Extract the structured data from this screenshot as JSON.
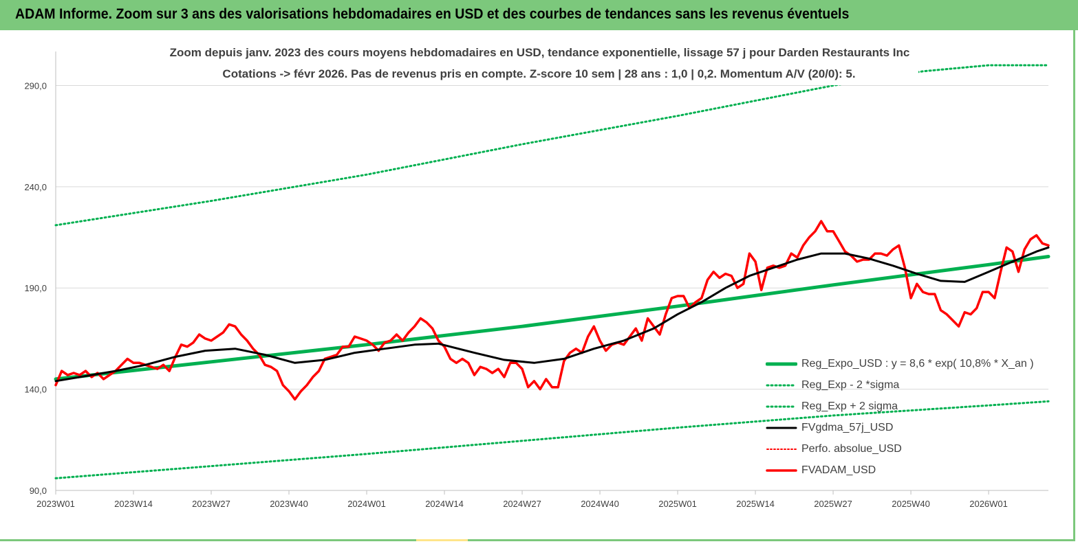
{
  "banner": {
    "title": "ADAM Informe. Zoom sur 3 ans des valorisations hebdomadaires en USD et des courbes de tendances sans les revenus éventuels"
  },
  "colors": {
    "banner": "#7cc87c",
    "regression": "#00b050",
    "sigma_band": "#00b050",
    "smoothed": "#000000",
    "perfo": "#ff0000",
    "price": "#ff0000"
  },
  "chart_data": {
    "type": "line",
    "title": "Zoom depuis janv. 2023 des cours moyens hebdomadaires en USD, tendance exponentielle, lissage 57 j pour Darden Restaurants Inc",
    "subtitle": "Cotations -> févr 2026. Pas de revenus pris en compte. Z-score 10 sem | 28 ans : 1,0 | 0,2. Momentum A/V (20/0): 5.",
    "xlabel": "",
    "ylabel": "",
    "ylim": [
      90,
      300
    ],
    "y_ticks": [
      "90,0",
      "140,0",
      "190,0",
      "240,0",
      "290,0"
    ],
    "y_tick_values": [
      90,
      140,
      190,
      240,
      290
    ],
    "x_ticks": [
      "2023W01",
      "2023W14",
      "2023W27",
      "2023W40",
      "2024W01",
      "2024W14",
      "2024W27",
      "2024W40",
      "2025W01",
      "2025W14",
      "2025W27",
      "2025W40",
      "2026W01"
    ],
    "x_tick_weeks": [
      0,
      13,
      26,
      39,
      52,
      65,
      78,
      91,
      104,
      117,
      130,
      143,
      156
    ],
    "x_max_week": 166,
    "grid": "horizontal",
    "legend_position": "bottom-right",
    "series": [
      {
        "name": "Reg_Expo_USD : y = 8,6 * exp( 10,8% * X_an )",
        "style": "solid-thick",
        "points": [
          [
            0,
            145
          ],
          [
            26,
            153.5
          ],
          [
            52,
            162
          ],
          [
            78,
            171
          ],
          [
            104,
            181
          ],
          [
            130,
            191.5
          ],
          [
            156,
            201.5
          ],
          [
            166,
            205.5
          ]
        ]
      },
      {
        "name": "Reg_Exp - 2 *sigma",
        "style": "dotted",
        "points": [
          [
            0,
            96
          ],
          [
            26,
            102
          ],
          [
            52,
            108
          ],
          [
            78,
            114.5
          ],
          [
            104,
            121
          ],
          [
            130,
            127
          ],
          [
            156,
            132
          ],
          [
            166,
            134
          ]
        ]
      },
      {
        "name": "Reg_Exp + 2 sigma",
        "style": "dotted",
        "points": [
          [
            0,
            221
          ],
          [
            26,
            233
          ],
          [
            52,
            246
          ],
          [
            78,
            261
          ],
          [
            104,
            275
          ],
          [
            130,
            290
          ],
          [
            145,
            297
          ],
          [
            156,
            300
          ],
          [
            166,
            300
          ]
        ]
      },
      {
        "name": "FVgdma_57j_USD",
        "style": "solid",
        "points": [
          [
            0,
            144
          ],
          [
            5,
            146.5
          ],
          [
            10,
            149
          ],
          [
            15,
            152
          ],
          [
            20,
            156
          ],
          [
            25,
            159
          ],
          [
            30,
            160
          ],
          [
            35,
            157
          ],
          [
            40,
            153
          ],
          [
            45,
            154.5
          ],
          [
            50,
            158
          ],
          [
            55,
            160
          ],
          [
            60,
            162
          ],
          [
            64,
            162.5
          ],
          [
            70,
            158
          ],
          [
            75,
            154.5
          ],
          [
            80,
            153
          ],
          [
            85,
            155
          ],
          [
            90,
            160
          ],
          [
            95,
            164
          ],
          [
            100,
            170
          ],
          [
            104,
            177
          ],
          [
            108,
            183
          ],
          [
            112,
            190
          ],
          [
            116,
            196
          ],
          [
            120,
            200
          ],
          [
            124,
            204
          ],
          [
            128,
            207
          ],
          [
            132,
            207
          ],
          [
            136,
            204.5
          ],
          [
            140,
            201
          ],
          [
            144,
            197
          ],
          [
            148,
            193.5
          ],
          [
            152,
            193
          ],
          [
            156,
            198
          ],
          [
            160,
            203
          ],
          [
            164,
            208
          ],
          [
            166,
            210
          ]
        ]
      },
      {
        "name": "Perfo. absolue_USD",
        "style": "dotted",
        "points": []
      },
      {
        "name": "FVADAM_USD",
        "style": "solid-thick",
        "points": [
          [
            0,
            142
          ],
          [
            1,
            149
          ],
          [
            2,
            147
          ],
          [
            3,
            148
          ],
          [
            4,
            147
          ],
          [
            5,
            149
          ],
          [
            6,
            146
          ],
          [
            7,
            148
          ],
          [
            8,
            145
          ],
          [
            9,
            147
          ],
          [
            10,
            149
          ],
          [
            11,
            152
          ],
          [
            12,
            155
          ],
          [
            13,
            153
          ],
          [
            14,
            153
          ],
          [
            15,
            152
          ],
          [
            16,
            151
          ],
          [
            17,
            150
          ],
          [
            18,
            152
          ],
          [
            19,
            149
          ],
          [
            20,
            156
          ],
          [
            21,
            162
          ],
          [
            22,
            161
          ],
          [
            23,
            163
          ],
          [
            24,
            167
          ],
          [
            25,
            165
          ],
          [
            26,
            164
          ],
          [
            27,
            166
          ],
          [
            28,
            168
          ],
          [
            29,
            172
          ],
          [
            30,
            171
          ],
          [
            31,
            167
          ],
          [
            32,
            164
          ],
          [
            33,
            160
          ],
          [
            34,
            157
          ],
          [
            35,
            152
          ],
          [
            36,
            151
          ],
          [
            37,
            149
          ],
          [
            38,
            142
          ],
          [
            39,
            139
          ],
          [
            40,
            135
          ],
          [
            41,
            139
          ],
          [
            42,
            142
          ],
          [
            43,
            146
          ],
          [
            44,
            149
          ],
          [
            45,
            155
          ],
          [
            46,
            156
          ],
          [
            47,
            157
          ],
          [
            48,
            161
          ],
          [
            49,
            161
          ],
          [
            50,
            166
          ],
          [
            51,
            165
          ],
          [
            52,
            164
          ],
          [
            53,
            162
          ],
          [
            54,
            159
          ],
          [
            55,
            163
          ],
          [
            56,
            164
          ],
          [
            57,
            167
          ],
          [
            58,
            164
          ],
          [
            59,
            168
          ],
          [
            60,
            171
          ],
          [
            61,
            175
          ],
          [
            62,
            173
          ],
          [
            63,
            170
          ],
          [
            64,
            164
          ],
          [
            65,
            161
          ],
          [
            66,
            155
          ],
          [
            67,
            153
          ],
          [
            68,
            155
          ],
          [
            69,
            153
          ],
          [
            70,
            147
          ],
          [
            71,
            151
          ],
          [
            72,
            150
          ],
          [
            73,
            148
          ],
          [
            74,
            150
          ],
          [
            75,
            146
          ],
          [
            76,
            153
          ],
          [
            77,
            153
          ],
          [
            78,
            150
          ],
          [
            79,
            141
          ],
          [
            80,
            144
          ],
          [
            81,
            140
          ],
          [
            82,
            145
          ],
          [
            83,
            141
          ],
          [
            84,
            141
          ],
          [
            85,
            154
          ],
          [
            86,
            158
          ],
          [
            87,
            160
          ],
          [
            88,
            158
          ],
          [
            89,
            166
          ],
          [
            90,
            171
          ],
          [
            91,
            164
          ],
          [
            92,
            159
          ],
          [
            93,
            162
          ],
          [
            94,
            163
          ],
          [
            95,
            162
          ],
          [
            96,
            166
          ],
          [
            97,
            170
          ],
          [
            98,
            164
          ],
          [
            99,
            175
          ],
          [
            100,
            171
          ],
          [
            101,
            167
          ],
          [
            102,
            177
          ],
          [
            103,
            185
          ],
          [
            104,
            186
          ],
          [
            105,
            186
          ],
          [
            106,
            180
          ],
          [
            107,
            183
          ],
          [
            108,
            185
          ],
          [
            109,
            194
          ],
          [
            110,
            198
          ],
          [
            111,
            195
          ],
          [
            112,
            197
          ],
          [
            113,
            196
          ],
          [
            114,
            190
          ],
          [
            115,
            192
          ],
          [
            116,
            207
          ],
          [
            117,
            203
          ],
          [
            118,
            189
          ],
          [
            119,
            200
          ],
          [
            120,
            201
          ],
          [
            121,
            200
          ],
          [
            122,
            201
          ],
          [
            123,
            207
          ],
          [
            124,
            205
          ],
          [
            125,
            211
          ],
          [
            126,
            215
          ],
          [
            127,
            218
          ],
          [
            128,
            223
          ],
          [
            129,
            218
          ],
          [
            130,
            218
          ],
          [
            131,
            213
          ],
          [
            132,
            208
          ],
          [
            133,
            206
          ],
          [
            134,
            203
          ],
          [
            135,
            204
          ],
          [
            136,
            204
          ],
          [
            137,
            207
          ],
          [
            138,
            207
          ],
          [
            139,
            206
          ],
          [
            140,
            209
          ],
          [
            141,
            211
          ],
          [
            142,
            200
          ],
          [
            143,
            185
          ],
          [
            144,
            192
          ],
          [
            145,
            188
          ],
          [
            146,
            187
          ],
          [
            147,
            187
          ],
          [
            148,
            179
          ],
          [
            149,
            177
          ],
          [
            150,
            174
          ],
          [
            151,
            171
          ],
          [
            152,
            178
          ],
          [
            153,
            177
          ],
          [
            154,
            180
          ],
          [
            155,
            188
          ],
          [
            156,
            188
          ],
          [
            157,
            185
          ],
          [
            158,
            198
          ],
          [
            159,
            210
          ],
          [
            160,
            208
          ],
          [
            161,
            198
          ],
          [
            162,
            209
          ],
          [
            163,
            214
          ],
          [
            164,
            216
          ],
          [
            165,
            212
          ],
          [
            166,
            211
          ]
        ]
      }
    ]
  }
}
